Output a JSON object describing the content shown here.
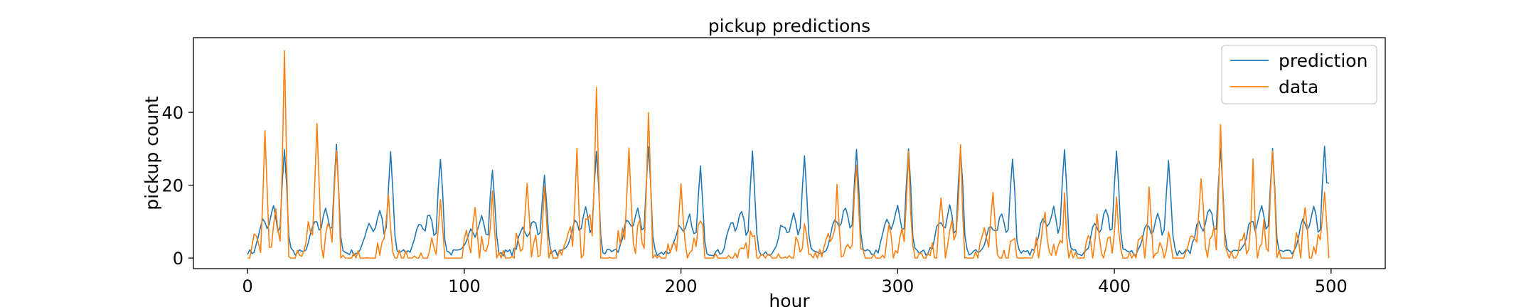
{
  "chart_data": {
    "type": "line",
    "title": "pickup predictions",
    "xlabel": "hour",
    "ylabel": "pickup count",
    "xlim": [
      -25,
      525
    ],
    "ylim": [
      -2.9,
      60.5
    ],
    "xticks": [
      0,
      100,
      200,
      300,
      400,
      500
    ],
    "yticks": [
      0,
      20,
      40
    ],
    "grid": false,
    "legend_position": "top-right",
    "colors": {
      "prediction": "#1f77b4",
      "data": "#ff7f0e",
      "frame": "#000000"
    },
    "series": [
      {
        "name": "prediction",
        "peaks": [
          {
            "x": 17,
            "y": 29
          },
          {
            "x": 41,
            "y": 29
          },
          {
            "x": 66,
            "y": 27
          },
          {
            "x": 89,
            "y": 26
          },
          {
            "x": 113,
            "y": 23
          },
          {
            "x": 137,
            "y": 22
          },
          {
            "x": 161,
            "y": 28
          },
          {
            "x": 185,
            "y": 29
          },
          {
            "x": 209,
            "y": 23
          },
          {
            "x": 233,
            "y": 27
          },
          {
            "x": 257,
            "y": 26
          },
          {
            "x": 281,
            "y": 29
          },
          {
            "x": 305,
            "y": 29
          },
          {
            "x": 329,
            "y": 29
          },
          {
            "x": 353,
            "y": 26
          },
          {
            "x": 377,
            "y": 29
          },
          {
            "x": 401,
            "y": 28
          },
          {
            "x": 425,
            "y": 26
          },
          {
            "x": 449,
            "y": 29
          },
          {
            "x": 473,
            "y": 29
          },
          {
            "x": 497,
            "y": 29
          }
        ],
        "end": {
          "x": 499,
          "y": 20.5
        }
      },
      {
        "name": "data",
        "peaks": [
          {
            "x": 8,
            "y": 34
          },
          {
            "x": 17,
            "y": 57
          },
          {
            "x": 32,
            "y": 37
          },
          {
            "x": 41,
            "y": 31
          },
          {
            "x": 65,
            "y": 16
          },
          {
            "x": 89,
            "y": 19
          },
          {
            "x": 105,
            "y": 17
          },
          {
            "x": 113,
            "y": 20
          },
          {
            "x": 129,
            "y": 19
          },
          {
            "x": 137,
            "y": 18
          },
          {
            "x": 152,
            "y": 29
          },
          {
            "x": 161,
            "y": 47
          },
          {
            "x": 176,
            "y": 29
          },
          {
            "x": 185,
            "y": 43
          },
          {
            "x": 200,
            "y": 21
          },
          {
            "x": 209,
            "y": 12
          },
          {
            "x": 233,
            "y": 9
          },
          {
            "x": 257,
            "y": 10
          },
          {
            "x": 272,
            "y": 22
          },
          {
            "x": 281,
            "y": 28
          },
          {
            "x": 296,
            "y": 8
          },
          {
            "x": 305,
            "y": 27
          },
          {
            "x": 320,
            "y": 16
          },
          {
            "x": 329,
            "y": 32
          },
          {
            "x": 344,
            "y": 21
          },
          {
            "x": 353,
            "y": 6
          },
          {
            "x": 368,
            "y": 13
          },
          {
            "x": 377,
            "y": 15
          },
          {
            "x": 392,
            "y": 12
          },
          {
            "x": 401,
            "y": 19
          },
          {
            "x": 416,
            "y": 17
          },
          {
            "x": 425,
            "y": 10
          },
          {
            "x": 440,
            "y": 24
          },
          {
            "x": 449,
            "y": 34
          },
          {
            "x": 464,
            "y": 24
          },
          {
            "x": 473,
            "y": 30
          },
          {
            "x": 488,
            "y": 17
          },
          {
            "x": 497,
            "y": 18
          }
        ],
        "end": {
          "x": 499,
          "y": 0
        }
      }
    ]
  }
}
